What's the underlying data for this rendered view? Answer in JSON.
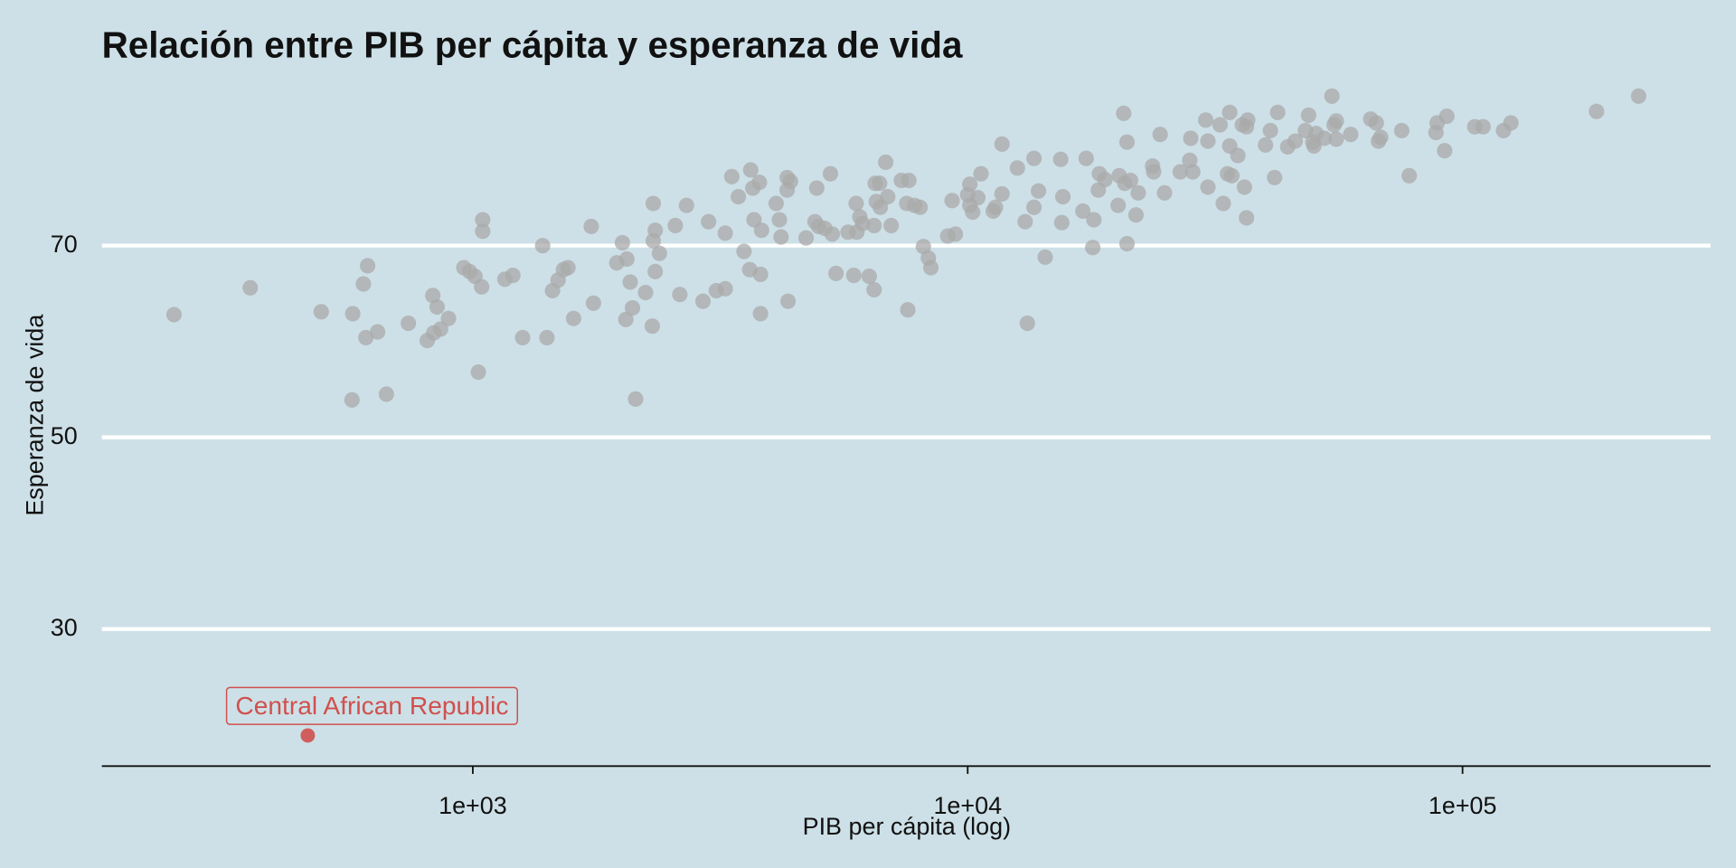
{
  "chart_data": {
    "type": "scatter",
    "title": "Relación entre PIB per cápita y esperanza de vida",
    "x_label": "PIB per cápita (log)",
    "y_label": "Esperanza de vida",
    "xlog": true,
    "xlim": [
      178,
      317000
    ],
    "ylim": [
      15.7,
      86.5
    ],
    "xticks": [
      {
        "value": 1000,
        "label": "1e+03"
      },
      {
        "value": 10000,
        "label": "1e+04"
      },
      {
        "value": 100000,
        "label": "1e+05"
      }
    ],
    "yticks": [
      30,
      50,
      70
    ],
    "grid": true,
    "series": [
      {
        "color": "#a9a9a9",
        "x": [
          249,
          355,
          494,
          570,
          572,
          601,
          613,
          608,
          642,
          669,
          741,
          809,
          830,
          847,
          834,
          861,
          893,
          959,
          985,
          1010,
          1026,
          1047,
          1047,
          1042,
          1161,
          1205,
          1261,
          1384,
          1412,
          1449,
          1487,
          1525,
          1557,
          1598,
          1735,
          1753,
          1954,
          2006,
          2048,
          2038,
          2080,
          2102,
          2133,
          2234,
          2315,
          2305,
          2315,
          2337,
          2337,
          2383,
          2566,
          2620,
          2703,
          2918,
          2995,
          3105,
          3237,
          3237,
          3337,
          3440,
          3532,
          3644,
          3627,
          3680,
          3794,
          3700,
          3814,
          3814,
          3832,
          4102,
          4164,
          4196,
          4317,
          4317,
          4335,
          4385,
          4715,
          4914,
          4955,
          4997,
          5143,
          5281,
          5325,
          5419,
          5730,
          5886,
          5951,
          5970,
          6054,
          6128,
          6324,
          6470,
          6470,
          6503,
          6536,
          6637,
          6660,
          6829,
          6893,
          7005,
          7345,
          7530,
          7568,
          7605,
          7810,
          8013,
          8138,
          8326,
          8425,
          9113,
          9300,
          9443,
          10000,
          10100,
          10100,
          10235,
          10483,
          10640,
          11262,
          11380,
          11730,
          11730,
          12604,
          13065,
          13200,
          13614,
          13614,
          13900,
          14343,
          15414,
          15492,
          15570,
          17090,
          17356,
          17893,
          17985,
          18362,
          18455,
          18945,
          20137,
          20240,
          20663,
          20770,
          20985,
          20985,
          21330,
          21880,
          22110,
          23636,
          23758,
          24486,
          24990,
          26887,
          28100,
          28230,
          28500,
          30270,
          30580,
          30580,
          32360,
          32840,
          33500,
          33840,
          33840,
          34180,
          35150,
          35890,
          36600,
          36600,
          36240,
          36800,
          39980,
          40900,
          41700,
          42300,
          44320,
          45900,
          48130,
          48840,
          49820,
          50080,
          50600,
          52530,
          54450,
          55000,
          55560,
          55560,
          59430,
          65220,
          66930,
          67620,
          68320,
          75340,
          78010,
          88370,
          88830,
          91990,
          92940,
          105830,
          110000,
          121000,
          125200,
          186500,
          226800
        ],
        "values": [
          62.8,
          65.6,
          63.1,
          53.9,
          62.9,
          66.0,
          67.9,
          60.4,
          61.0,
          54.5,
          61.9,
          60.1,
          64.8,
          63.6,
          60.9,
          61.3,
          62.4,
          67.7,
          67.3,
          66.8,
          56.8,
          72.7,
          71.5,
          65.7,
          66.5,
          66.9,
          60.4,
          70.0,
          60.4,
          65.3,
          66.4,
          67.5,
          67.7,
          62.4,
          72.0,
          64.0,
          68.2,
          70.3,
          68.6,
          62.3,
          66.2,
          63.5,
          54.0,
          65.1,
          74.4,
          61.6,
          70.5,
          71.6,
          67.3,
          69.2,
          72.1,
          64.9,
          74.2,
          64.2,
          72.5,
          65.3,
          65.5,
          71.3,
          77.2,
          75.1,
          69.4,
          77.9,
          67.5,
          76.0,
          76.6,
          72.7,
          67.0,
          62.9,
          71.6,
          74.4,
          72.7,
          70.9,
          77.1,
          75.8,
          64.2,
          76.7,
          70.8,
          72.5,
          76.0,
          72.0,
          71.8,
          77.5,
          71.2,
          67.1,
          71.4,
          66.9,
          74.4,
          71.4,
          73.0,
          72.3,
          66.8,
          72.1,
          65.4,
          76.5,
          74.6,
          76.5,
          74.0,
          78.7,
          75.1,
          72.1,
          76.8,
          74.4,
          63.3,
          76.8,
          74.2,
          74.0,
          69.9,
          68.7,
          67.7,
          71.0,
          74.7,
          71.2,
          75.3,
          76.4,
          74.2,
          73.5,
          75.0,
          77.5,
          73.6,
          74.0,
          80.6,
          75.4,
          78.1,
          72.5,
          61.9,
          79.1,
          74.0,
          75.7,
          68.8,
          79.0,
          72.4,
          75.1,
          73.6,
          79.1,
          69.8,
          72.7,
          75.8,
          77.5,
          76.9,
          74.2,
          77.3,
          83.8,
          76.5,
          80.8,
          70.2,
          76.8,
          73.2,
          75.5,
          78.3,
          77.7,
          81.6,
          75.5,
          77.7,
          78.9,
          81.2,
          77.7,
          83.1,
          80.9,
          76.1,
          82.6,
          74.4,
          77.5,
          83.9,
          80.4,
          77.3,
          79.4,
          82.6,
          82.4,
          72.9,
          76.1,
          83.1,
          80.5,
          82.0,
          77.1,
          83.9,
          80.3,
          80.9,
          82.0,
          83.6,
          80.8,
          80.4,
          81.7,
          81.2,
          85.6,
          82.6,
          83.0,
          81.1,
          81.6,
          83.2,
          82.8,
          80.9,
          81.3,
          82.0,
          77.3,
          81.8,
          82.8,
          79.9,
          83.5,
          82.4,
          82.4,
          82.0,
          82.8,
          84.0,
          85.6
        ]
      },
      {
        "name": "Central African Republic",
        "color": "#d0504e",
        "x": [
          464
        ],
        "values": [
          18.9
        ]
      }
    ]
  }
}
